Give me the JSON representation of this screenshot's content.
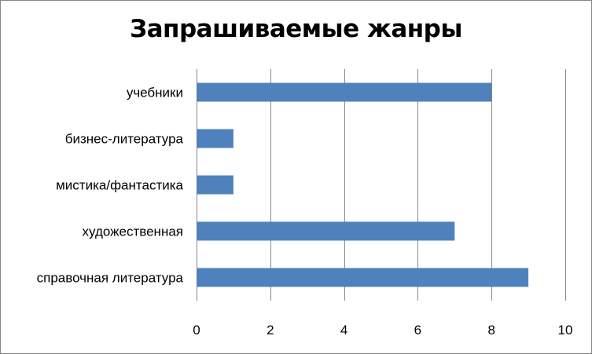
{
  "chart_data": {
    "type": "bar",
    "orientation": "horizontal",
    "title": "Запрашиваемые жанры",
    "categories": [
      "учебники",
      "бизнес-литература",
      "мистика/фантастика",
      "художественная",
      "справочная литература"
    ],
    "values": [
      8,
      1,
      1,
      7,
      9
    ],
    "xlim": [
      0,
      10
    ],
    "xticks": [
      "0",
      "2",
      "4",
      "6",
      "8",
      "10"
    ],
    "grid": "vertical",
    "legend": "none",
    "colors": {
      "bar": "#4F81BD",
      "grid": "#868686",
      "frame": "#868686"
    }
  }
}
